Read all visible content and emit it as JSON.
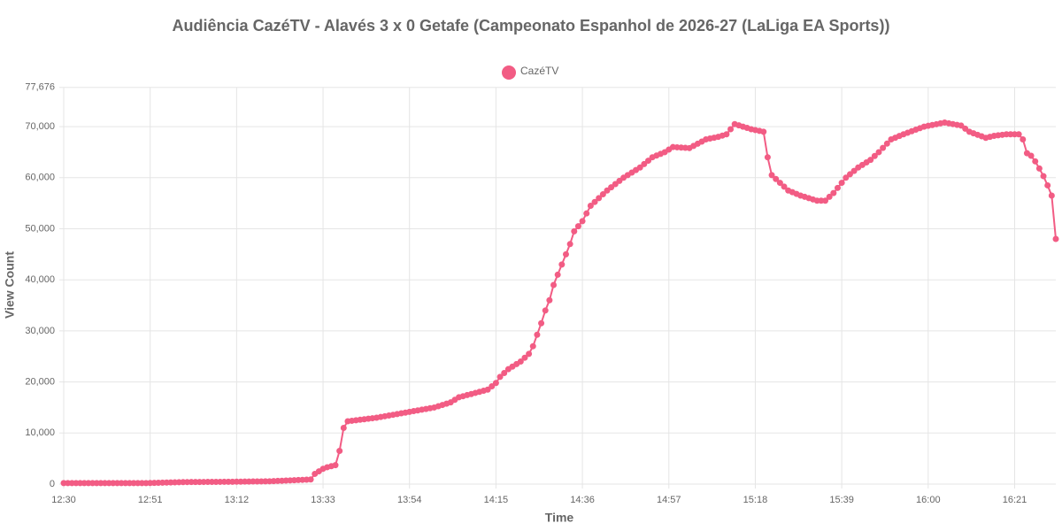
{
  "chart_data": {
    "type": "line",
    "title": "Audiência CazéTV - Alavés 3 x 0 Getafe (Campeonato Espanhol de 2026-27 (LaLiga EA Sports))",
    "x_label": "Time",
    "y_label": "View Count",
    "grid": true,
    "legend": "top",
    "categories": [
      "12:30",
      null,
      null,
      null,
      null,
      null,
      null,
      null,
      null,
      null,
      null,
      null,
      null,
      null,
      null,
      null,
      null,
      null,
      null,
      null,
      null,
      "12:51",
      null,
      null,
      null,
      null,
      null,
      null,
      null,
      null,
      null,
      null,
      null,
      null,
      null,
      null,
      null,
      null,
      null,
      null,
      null,
      null,
      "13:12",
      null,
      null,
      null,
      null,
      null,
      null,
      null,
      null,
      null,
      null,
      null,
      null,
      null,
      null,
      null,
      null,
      null,
      null,
      null,
      null,
      "13:33",
      null,
      null,
      null,
      null,
      null,
      null,
      null,
      null,
      null,
      null,
      null,
      null,
      null,
      null,
      null,
      null,
      null,
      null,
      null,
      null,
      "13:54",
      null,
      null,
      null,
      null,
      null,
      null,
      null,
      null,
      null,
      null,
      null,
      null,
      null,
      null,
      null,
      null,
      null,
      null,
      null,
      null,
      "14:15",
      null,
      null,
      null,
      null,
      null,
      null,
      null,
      null,
      null,
      null,
      null,
      null,
      null,
      null,
      null,
      null,
      null,
      null,
      null,
      null,
      "14:36",
      null,
      null,
      null,
      null,
      null,
      null,
      null,
      null,
      null,
      null,
      null,
      null,
      null,
      null,
      null,
      null,
      null,
      null,
      null,
      null,
      "14:57",
      null,
      null,
      null,
      null,
      null,
      null,
      null,
      null,
      null,
      null,
      null,
      null,
      null,
      null,
      null,
      null,
      null,
      null,
      null,
      null,
      "15:18",
      null,
      null,
      null,
      null,
      null,
      null,
      null,
      null,
      null,
      null,
      null,
      null,
      null,
      null,
      null,
      null,
      null,
      null,
      null,
      null,
      "15:39",
      null,
      null,
      null,
      null,
      null,
      null,
      null,
      null,
      null,
      null,
      null,
      null,
      null,
      null,
      null,
      null,
      null,
      null,
      null,
      null,
      "16:00",
      null,
      null,
      null,
      null,
      null,
      null,
      null,
      null,
      null,
      null,
      null,
      null,
      null,
      null,
      null,
      null,
      null,
      null,
      null,
      null,
      "16:21",
      null,
      null,
      null,
      null,
      null,
      null,
      null,
      null,
      null,
      null
    ],
    "series": [
      {
        "name": "CazéTV",
        "color": "#f25c84",
        "values": [
          200,
          200,
          200,
          200,
          200,
          200,
          200,
          200,
          200,
          200,
          200,
          200,
          200,
          200,
          200,
          200,
          200,
          200,
          200,
          200,
          200,
          220,
          240,
          260,
          280,
          300,
          320,
          340,
          360,
          380,
          400,
          405,
          410,
          415,
          420,
          425,
          430,
          435,
          440,
          445,
          450,
          460,
          470,
          480,
          490,
          500,
          510,
          520,
          530,
          540,
          550,
          585,
          620,
          655,
          690,
          725,
          760,
          795,
          830,
          865,
          900,
          2000,
          2500,
          3000,
          3300,
          3500,
          3700,
          6500,
          11000,
          12300,
          12400,
          12500,
          12600,
          12700,
          12800,
          12900,
          13000,
          13140,
          13290,
          13430,
          13570,
          13710,
          13860,
          14000,
          14140,
          14290,
          14430,
          14570,
          14710,
          14860,
          15000,
          15250,
          15500,
          15750,
          16000,
          16500,
          17000,
          17210,
          17430,
          17640,
          17860,
          18070,
          18290,
          18500,
          19150,
          19800,
          21000,
          21750,
          22500,
          23000,
          23500,
          24000,
          24750,
          25500,
          27000,
          29250,
          31500,
          34000,
          36000,
          39000,
          41000,
          43000,
          45000,
          47000,
          49500,
          50500,
          51500,
          53000,
          54500,
          55250,
          56000,
          56750,
          57500,
          58125,
          58750,
          59375,
          60000,
          60500,
          61000,
          61500,
          62000,
          62670,
          63330,
          64000,
          64330,
          64670,
          65000,
          65500,
          66000,
          65950,
          65900,
          65850,
          65800,
          66225,
          66650,
          67075,
          67500,
          67670,
          67830,
          68000,
          68250,
          68500,
          69500,
          70500,
          70250,
          70000,
          69750,
          69500,
          69330,
          69170,
          69000,
          64000,
          60500,
          59750,
          59000,
          58250,
          57500,
          57170,
          56830,
          56500,
          56250,
          56000,
          55750,
          55500,
          55500,
          55500,
          56250,
          57000,
          58000,
          59000,
          60000,
          60670,
          61330,
          62000,
          62500,
          63000,
          63500,
          64250,
          65000,
          65830,
          66670,
          67500,
          67830,
          68170,
          68500,
          68800,
          69100,
          69400,
          69700,
          70000,
          70160,
          70320,
          70480,
          70640,
          70800,
          70650,
          70500,
          70350,
          70200,
          69600,
          69000,
          68700,
          68400,
          68100,
          67800,
          68000,
          68200,
          68300,
          68400,
          68500,
          68500,
          68500,
          68500,
          67500,
          64800,
          64300,
          63200,
          61800,
          60300,
          58500,
          56500,
          48000
        ]
      }
    ],
    "ylim": [
      0,
      77676
    ],
    "yticks": [
      0,
      {
        "value": 10000,
        "label": "10,000"
      },
      {
        "value": 20000,
        "label": "20,000"
      },
      {
        "value": 30000,
        "label": "30,000"
      },
      {
        "value": 40000,
        "label": "40,000"
      },
      {
        "value": 50000,
        "label": "50,000"
      },
      {
        "value": 60000,
        "label": "60,000"
      },
      {
        "value": 70000,
        "label": "70,000"
      },
      {
        "value": 77676,
        "label": "77,676"
      }
    ]
  }
}
